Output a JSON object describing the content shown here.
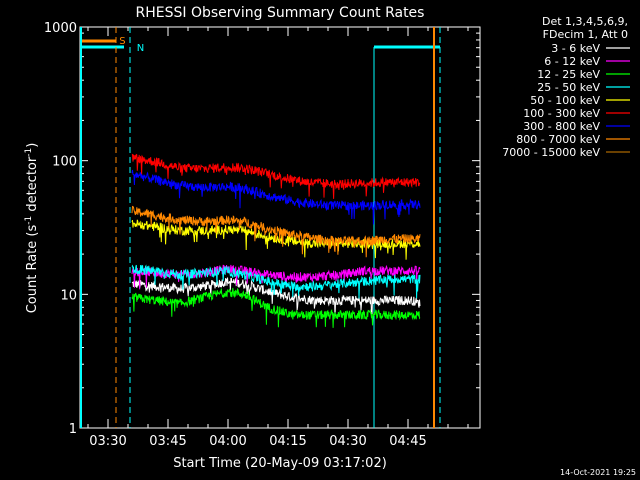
{
  "chart_data": {
    "type": "line",
    "title": "RHESSI Observing Summary Count Rates",
    "xlabel": "Start Time (20-May-09 03:17:02)",
    "ylabel_main": "Count Rate (s",
    "ylabel_sup1": "-1",
    "ylabel_mid": " detector",
    "ylabel_sup2": "-1",
    "ylabel_end": ")",
    "y_scale": "log",
    "ylim": [
      1,
      1000
    ],
    "xlim_minutes": [
      -37,
      63
    ],
    "x_tick_labels": [
      "03:30",
      "03:45",
      "04:00",
      "04:15",
      "04:30",
      "04:45"
    ],
    "x_ticks_minutes": [
      -30,
      -15,
      0,
      15,
      30,
      45
    ],
    "y_tick_labels": [
      "1",
      "10",
      "100",
      "1000"
    ],
    "y_ticks": [
      1,
      10,
      100,
      1000
    ],
    "legend_header": [
      "Det 1,3,4,5,6,9,",
      "FDecim 1, Att 0"
    ],
    "legend_placement": "right",
    "footer": "14-Oct-2021 19:25",
    "series": [
      {
        "name": "3 - 6 keV",
        "color": "#ffffff",
        "x": [
          -24,
          -18,
          -12,
          -6,
          0,
          4,
          10,
          16,
          22,
          28,
          34,
          40,
          46,
          48
        ],
        "values": [
          12,
          11.5,
          11,
          11.5,
          12.5,
          12,
          10.5,
          9.5,
          9,
          9,
          9,
          9,
          9,
          8.5
        ]
      },
      {
        "name": "6 - 12 keV",
        "color": "#ff00ff",
        "x": [
          -24,
          -18,
          -12,
          -6,
          0,
          4,
          10,
          16,
          22,
          28,
          34,
          40,
          46,
          48
        ],
        "values": [
          15,
          14.5,
          14,
          14.5,
          15.5,
          15,
          14,
          13.5,
          13.5,
          14,
          15,
          15,
          15,
          15
        ]
      },
      {
        "name": "12 - 25 keV",
        "color": "#00ff00",
        "x": [
          -24,
          -18,
          -12,
          -6,
          0,
          4,
          10,
          16,
          22,
          28,
          34,
          40,
          46,
          48
        ],
        "values": [
          9.5,
          9,
          8.5,
          9.5,
          10.5,
          10,
          8,
          7,
          7,
          7,
          7,
          7,
          7,
          7
        ]
      },
      {
        "name": "25 - 50 keV",
        "color": "#00ffff",
        "x": [
          -24,
          -18,
          -12,
          -6,
          0,
          4,
          10,
          16,
          22,
          28,
          34,
          40,
          46,
          48
        ],
        "values": [
          15.5,
          15,
          14,
          14.5,
          15,
          14,
          12.5,
          11.5,
          11.5,
          12,
          12.5,
          13,
          13,
          13
        ]
      },
      {
        "name": "50 - 100 keV",
        "color": "#ffff00",
        "x": [
          -24,
          -18,
          -12,
          -6,
          0,
          4,
          10,
          16,
          22,
          28,
          34,
          40,
          46,
          48
        ],
        "values": [
          34,
          32,
          30,
          30,
          30.5,
          30,
          27,
          25,
          24,
          24,
          24,
          24,
          24,
          24
        ]
      },
      {
        "name": "100 - 300 keV",
        "color": "#ff0000",
        "x": [
          -24,
          -18,
          -12,
          -6,
          0,
          4,
          10,
          16,
          22,
          28,
          34,
          40,
          46,
          48
        ],
        "values": [
          105,
          98,
          88,
          87,
          90,
          88,
          80,
          72,
          68,
          67,
          68,
          69,
          69,
          69
        ]
      },
      {
        "name": "300 - 800 keV",
        "color": "#0000ff",
        "x": [
          -24,
          -18,
          -12,
          -6,
          0,
          4,
          10,
          16,
          22,
          28,
          34,
          40,
          46,
          48
        ],
        "values": [
          80,
          72,
          65,
          63,
          64,
          62,
          55,
          50,
          47,
          46,
          46,
          47,
          47,
          47
        ]
      },
      {
        "name": "800 - 7000 keV",
        "color": "#ff8800",
        "x": [
          -24,
          -18,
          -12,
          -6,
          0,
          4,
          10,
          16,
          22,
          28,
          34,
          40,
          46,
          48
        ],
        "values": [
          42,
          39,
          36,
          35,
          36,
          35,
          31,
          28,
          26,
          25,
          25,
          26,
          26,
          26
        ]
      },
      {
        "name": "7000 - 15000 keV",
        "color": "#aa6600",
        "x": [],
        "values": []
      }
    ],
    "markers": [
      {
        "label": "S",
        "color": "#ff8800"
      },
      {
        "label": "N",
        "color": "#00ffff"
      }
    ]
  }
}
